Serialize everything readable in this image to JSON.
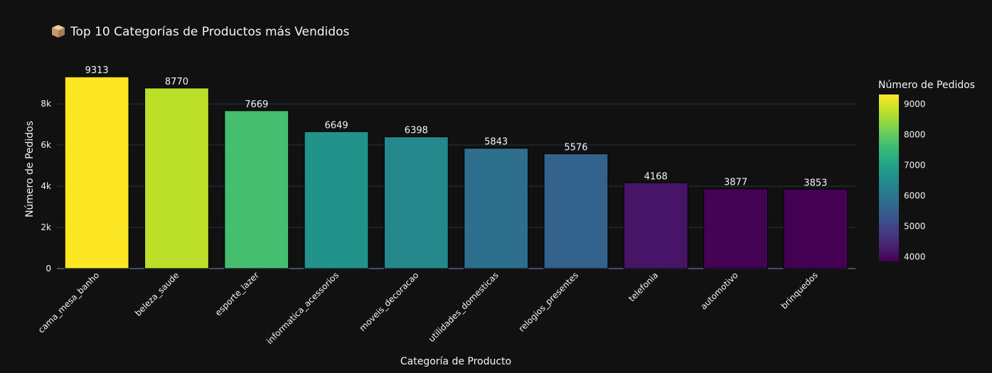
{
  "chart_data": {
    "type": "bar",
    "title": "Top 10 Categorías de Productos más Vendidos",
    "title_icon": "package-icon",
    "xlabel": "Categoría de Producto",
    "ylabel": "Número de Pedidos",
    "categories": [
      "cama_mesa_banho",
      "beleza_saude",
      "esporte_lazer",
      "informatica_acessorios",
      "moveis_decoracao",
      "utilidades_domesticas",
      "relogios_presentes",
      "telefonia",
      "automotivo",
      "brinquedos"
    ],
    "values": [
      9313,
      8770,
      7669,
      6649,
      6398,
      5843,
      5576,
      4168,
      3877,
      3853
    ],
    "ylim": [
      0,
      9803
    ],
    "y_ticks": [
      0,
      2000,
      4000,
      6000,
      8000
    ],
    "y_tick_labels": [
      "0",
      "2k",
      "4k",
      "6k",
      "8k"
    ],
    "grid": true,
    "colorscale": "viridis",
    "colorbar": {
      "title": "Número de Pedidos",
      "range": [
        3853,
        9313
      ],
      "ticks": [
        4000,
        5000,
        6000,
        7000,
        8000,
        9000
      ],
      "tick_labels": [
        "4000",
        "5000",
        "6000",
        "7000",
        "8000",
        "9000"
      ],
      "placement": "right"
    },
    "colors": {
      "background": "#111111",
      "grid": "#283442",
      "text": "#f2f5fa"
    }
  }
}
